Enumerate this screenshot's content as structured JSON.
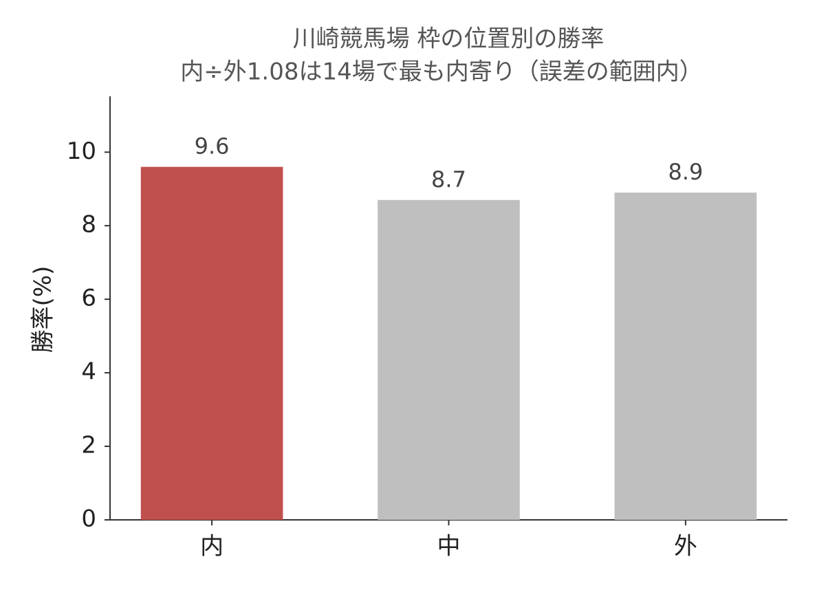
{
  "chart_data": {
    "type": "bar",
    "title": "川崎競馬場 枠の位置別の勝率",
    "subtitle": "内÷外1.08は14場で最も内寄り（誤差の範囲内）",
    "y_label": "勝率(%)",
    "categories": [
      "内",
      "中",
      "外"
    ],
    "values": [
      9.6,
      8.7,
      8.9
    ],
    "colors": [
      "#c0504d",
      "#bfbfbf",
      "#bfbfbf"
    ],
    "ylim": [
      0,
      11.52
    ],
    "yticks": [
      0,
      2,
      4,
      6,
      8,
      10
    ],
    "grid": false
  }
}
